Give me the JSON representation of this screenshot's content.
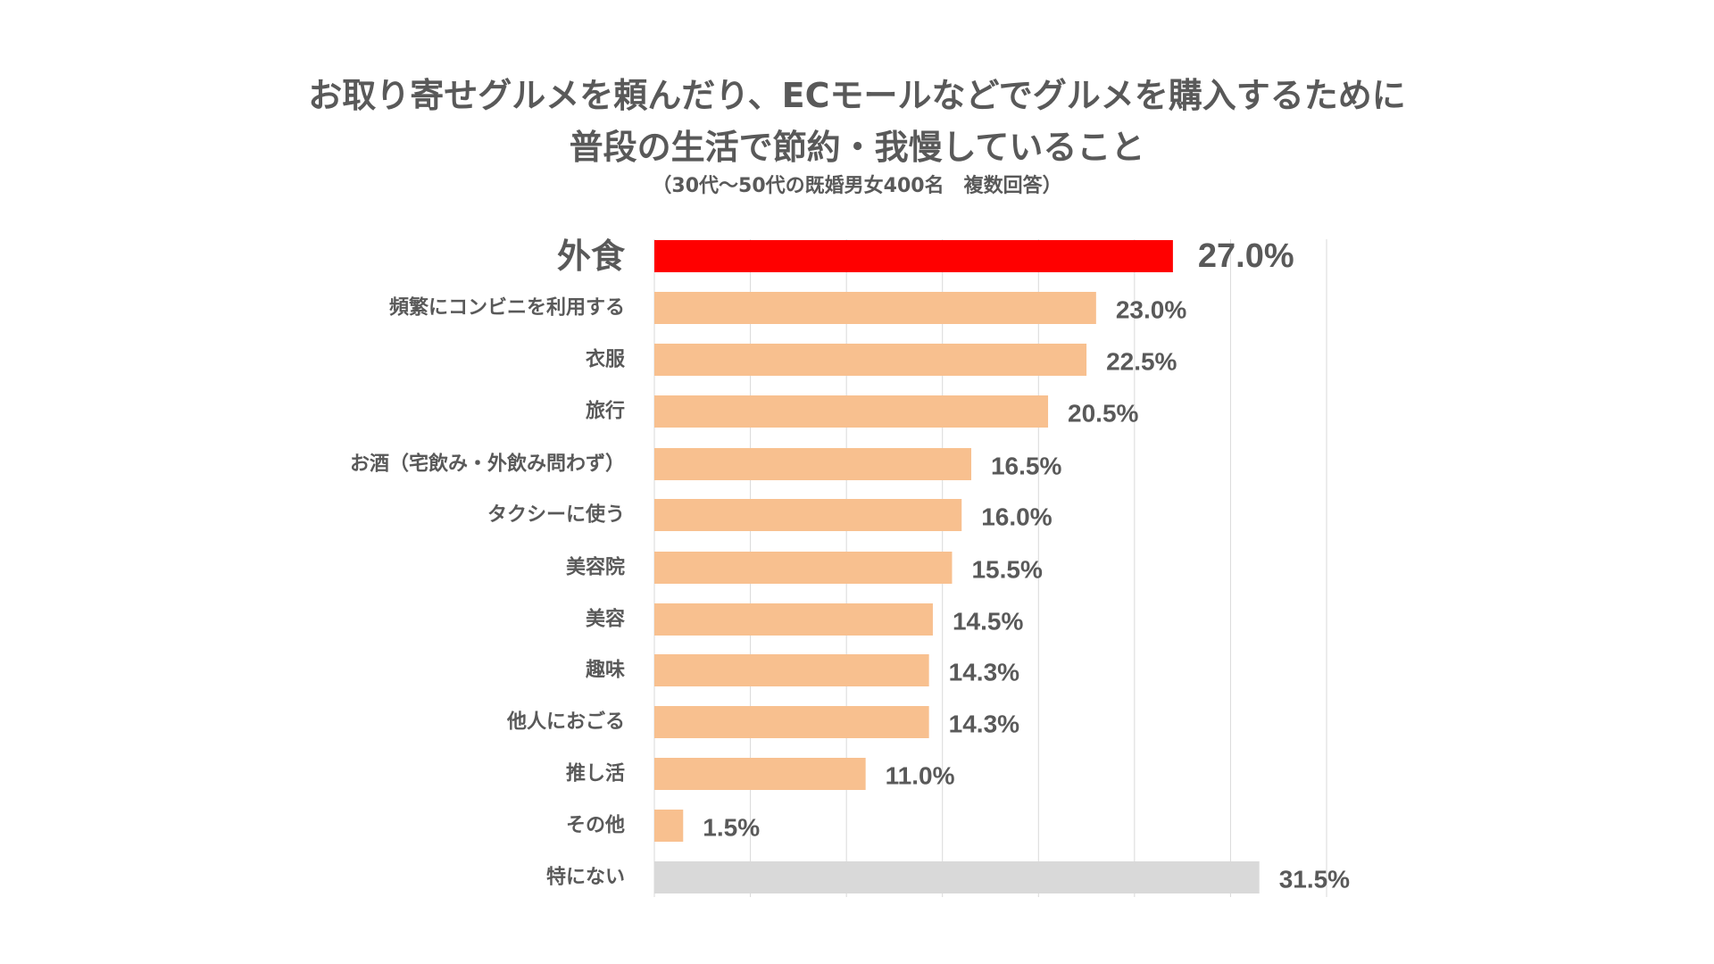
{
  "chart_data": {
    "type": "bar",
    "orientation": "horizontal",
    "title": "お取り寄せグルメを頼んだり、ECモールなどでグルメを購入するために",
    "title_line2": "普段の生活で節約・我慢していること",
    "subtitle": "（30代～50代の既婚男女400名　複数回答）",
    "categories": [
      "外食",
      "頻繁にコンビニを利用する",
      "衣服",
      "旅行",
      "お酒（宅飲み・外飲み問わず）",
      "タクシーに使う",
      "美容院",
      "美容",
      "趣味",
      "他人におごる",
      "推し活",
      "その他",
      "特にない"
    ],
    "values": [
      27.0,
      23.0,
      22.5,
      20.5,
      16.5,
      16.0,
      15.5,
      14.5,
      14.3,
      14.3,
      11.0,
      1.5,
      31.5
    ],
    "value_labels": [
      "27.0%",
      "23.0%",
      "22.5%",
      "20.5%",
      "16.5%",
      "16.0%",
      "15.5%",
      "14.5%",
      "14.3%",
      "14.3%",
      "11.0%",
      "1.5%",
      "31.5%"
    ],
    "xlim": [
      0,
      35
    ],
    "grid": true,
    "colors": {
      "highlight": "#ff0000",
      "default": "#f8c08f",
      "none": "#d9d9d9",
      "gridline": "#d9d9d9",
      "text": "#595959"
    },
    "bar_style": [
      "highlight",
      "default",
      "default",
      "default",
      "default",
      "default",
      "default",
      "default",
      "default",
      "default",
      "default",
      "default",
      "none"
    ]
  }
}
